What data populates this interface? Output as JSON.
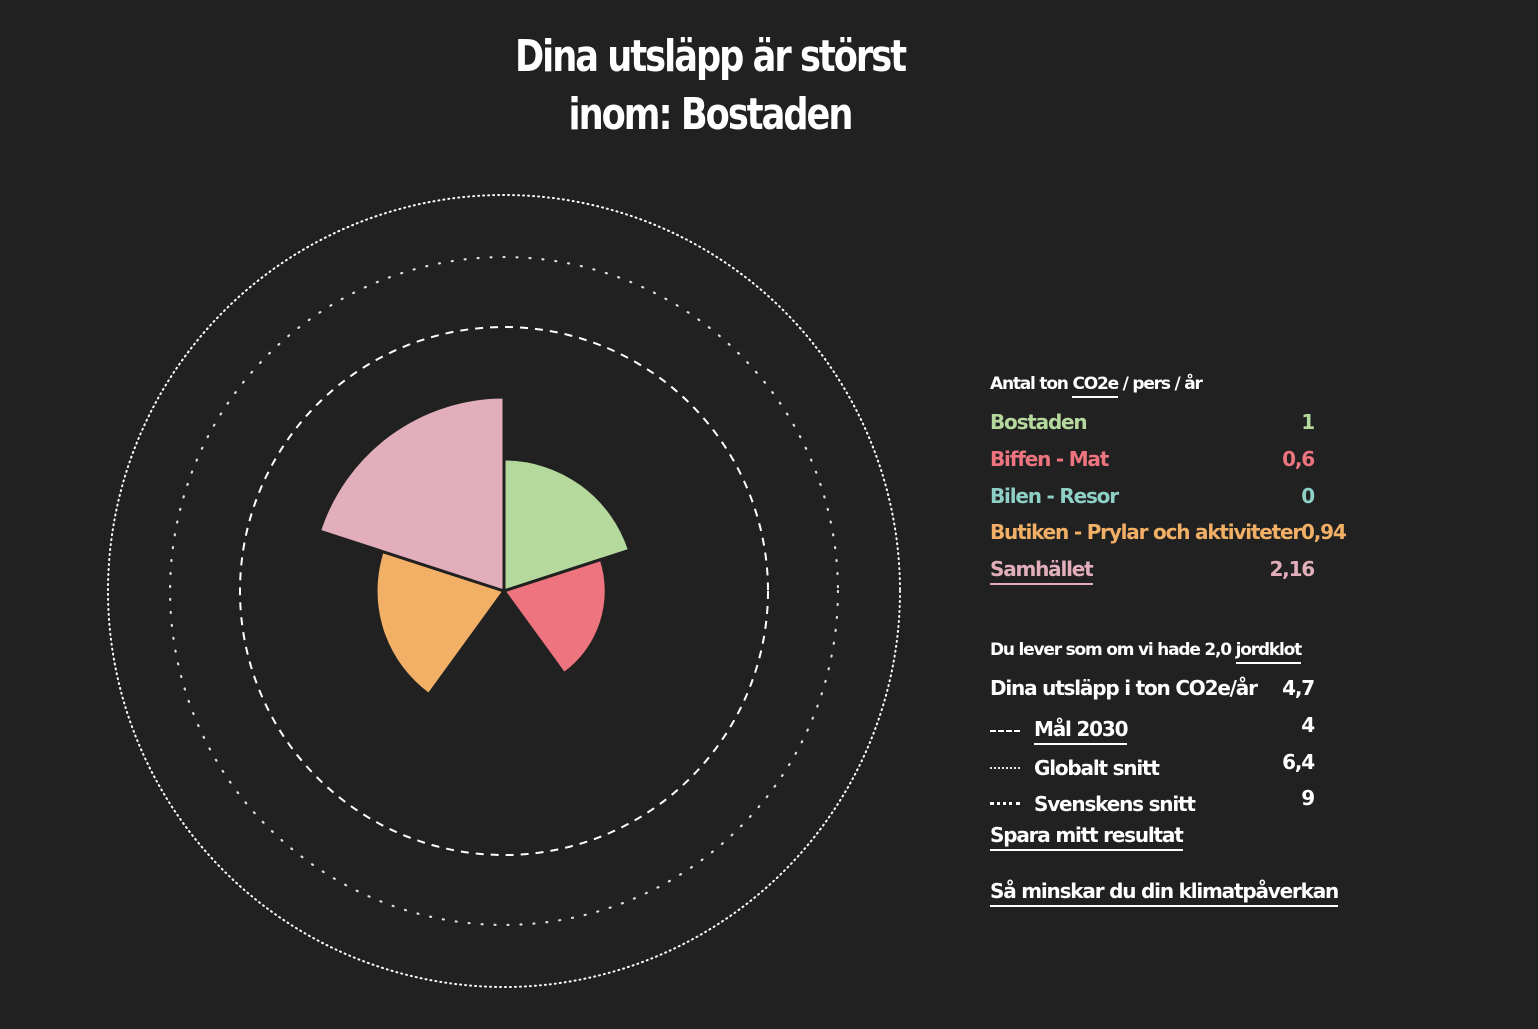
{
  "title_lines": [
    "Dina utsläpp är störst",
    "inom: Bostaden"
  ],
  "panel": {
    "unit_prefix": "Antal ton ",
    "unit_link": "CO2e",
    "unit_suffix": " / pers / år",
    "planet_prefix": "Du lever som om vi hade 2,0 ",
    "planet_link": "jordklot",
    "total_label": "Dina utsläpp i ton CO2e/år",
    "total_value": "4,7",
    "references": [
      {
        "label": "Mål 2030",
        "value": "4",
        "style": "dashed"
      },
      {
        "label": "Globalt snitt",
        "value": "6,4",
        "style": "dotted-sparse"
      },
      {
        "label": "Svenskens snitt",
        "value": "9",
        "style": "dotted-dense"
      }
    ],
    "save_link": "Spara mitt resultat",
    "reduce_link": "Så minskar du din klimatpåverkan"
  },
  "chart_data": {
    "type": "polar-area",
    "unit": "ton CO2e / pers / år",
    "categories": [
      "Bostaden",
      "Biffen - Mat",
      "Bilen - Resor",
      "Butiken - Prylar och aktiviteter",
      "Samhället"
    ],
    "values": [
      1,
      0.6,
      0,
      0.94,
      2.16
    ],
    "value_labels": [
      "1",
      "0,6",
      "0",
      "0,94",
      "2,16"
    ],
    "colors": [
      "#b5d99c",
      "#ee747f",
      "#8fd0c6",
      "#f2b066",
      "#e3aebc"
    ],
    "reference_circles": [
      {
        "name": "Mål 2030",
        "value": 4,
        "style": "dashed"
      },
      {
        "name": "Globalt snitt",
        "value": 6.4,
        "style": "dotted-sparse"
      },
      {
        "name": "Svenskens snitt",
        "value": 9,
        "style": "dotted-dense"
      }
    ]
  }
}
